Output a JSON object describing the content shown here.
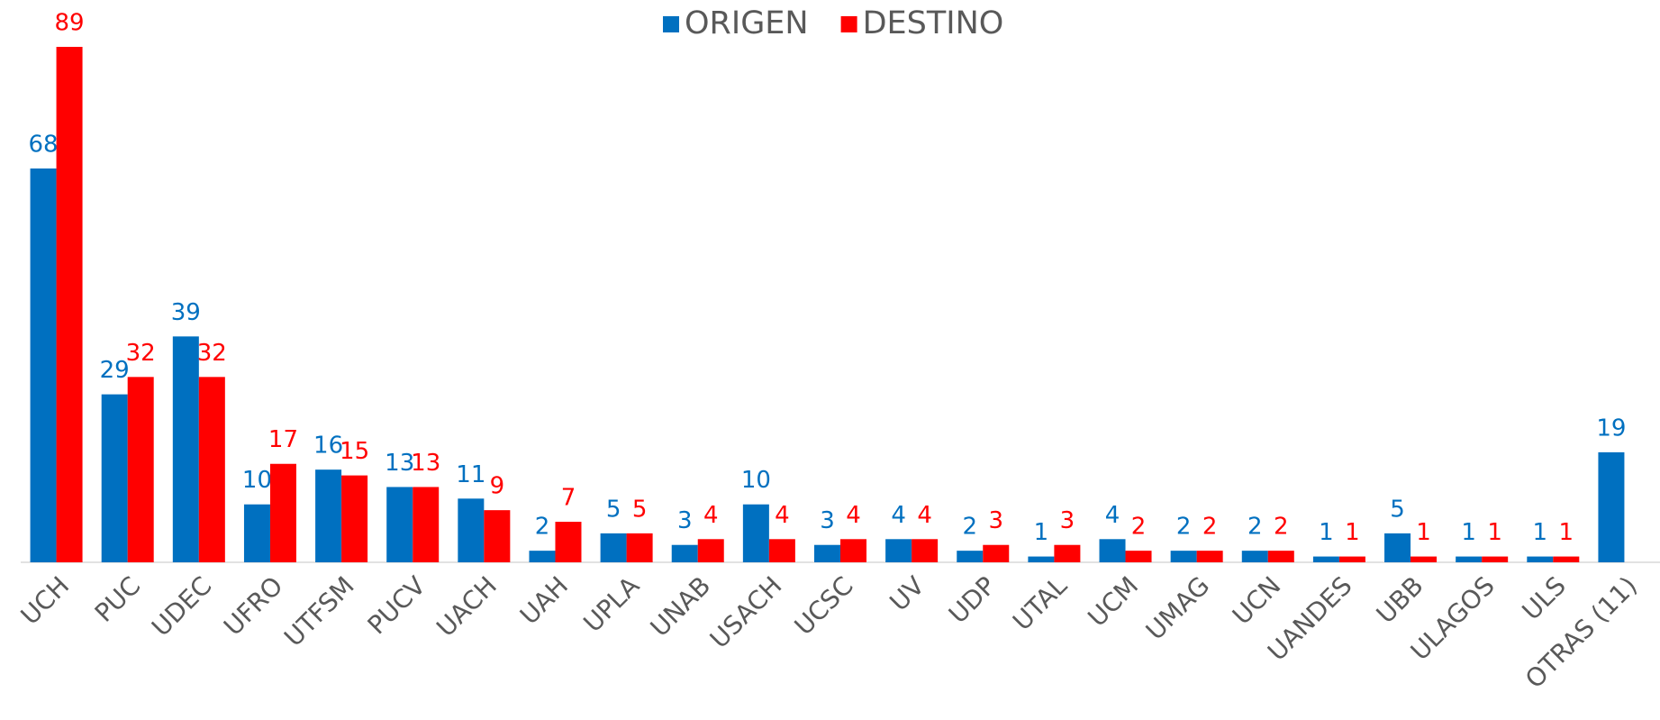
{
  "chart_data": {
    "type": "bar",
    "categories": [
      "UCH",
      "PUC",
      "UDEC",
      "UFRO",
      "UTFSM",
      "PUCV",
      "UACH",
      "UAH",
      "UPLA",
      "UNAB",
      "USACH",
      "UCSC",
      "UV",
      "UDP",
      "UTAL",
      "UCM",
      "UMAG",
      "UCN",
      "UANDES",
      "UBB",
      "ULAGOS",
      "ULS",
      "OTRAS (11)"
    ],
    "series": [
      {
        "name": "ORIGEN",
        "color": "#0070c0",
        "values": [
          68,
          29,
          39,
          10,
          16,
          13,
          11,
          2,
          5,
          3,
          10,
          3,
          4,
          2,
          1,
          4,
          2,
          2,
          1,
          5,
          1,
          1,
          19
        ]
      },
      {
        "name": "DESTINO",
        "color": "#ff0000",
        "values": [
          89,
          32,
          32,
          17,
          15,
          13,
          9,
          7,
          5,
          4,
          4,
          4,
          4,
          3,
          3,
          2,
          2,
          2,
          1,
          1,
          1,
          1,
          null
        ]
      }
    ],
    "legend": "top"
  }
}
